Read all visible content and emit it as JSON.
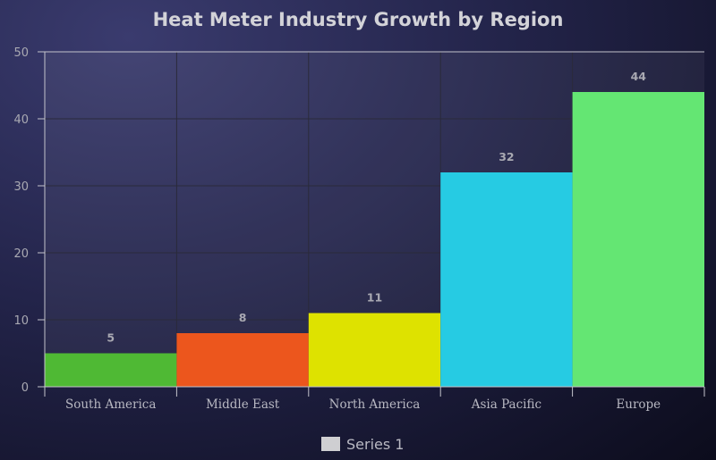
{
  "chart_data": {
    "type": "bar",
    "title": "Heat Meter Industry Growth by Region",
    "xlabel": "",
    "ylabel": "",
    "categories": [
      "South America",
      "Middle East",
      "North America",
      "Asia Pacific",
      "Europe"
    ],
    "series": [
      {
        "name": "Series 1",
        "values": [
          5,
          8,
          11,
          32,
          44
        ],
        "colors": [
          "#4fb934",
          "#ec561d",
          "#dee200",
          "#26cbe3",
          "#64e673"
        ]
      }
    ],
    "ylim": [
      0,
      50
    ],
    "yticks": [
      0,
      10,
      20,
      30,
      40,
      50
    ],
    "grid": true,
    "legend": "bottom",
    "data_labels": true
  },
  "colors": {
    "grid": "#2a2a3a",
    "axis": "#c4c4cc",
    "legend_swatch": "#cfcfd2"
  }
}
